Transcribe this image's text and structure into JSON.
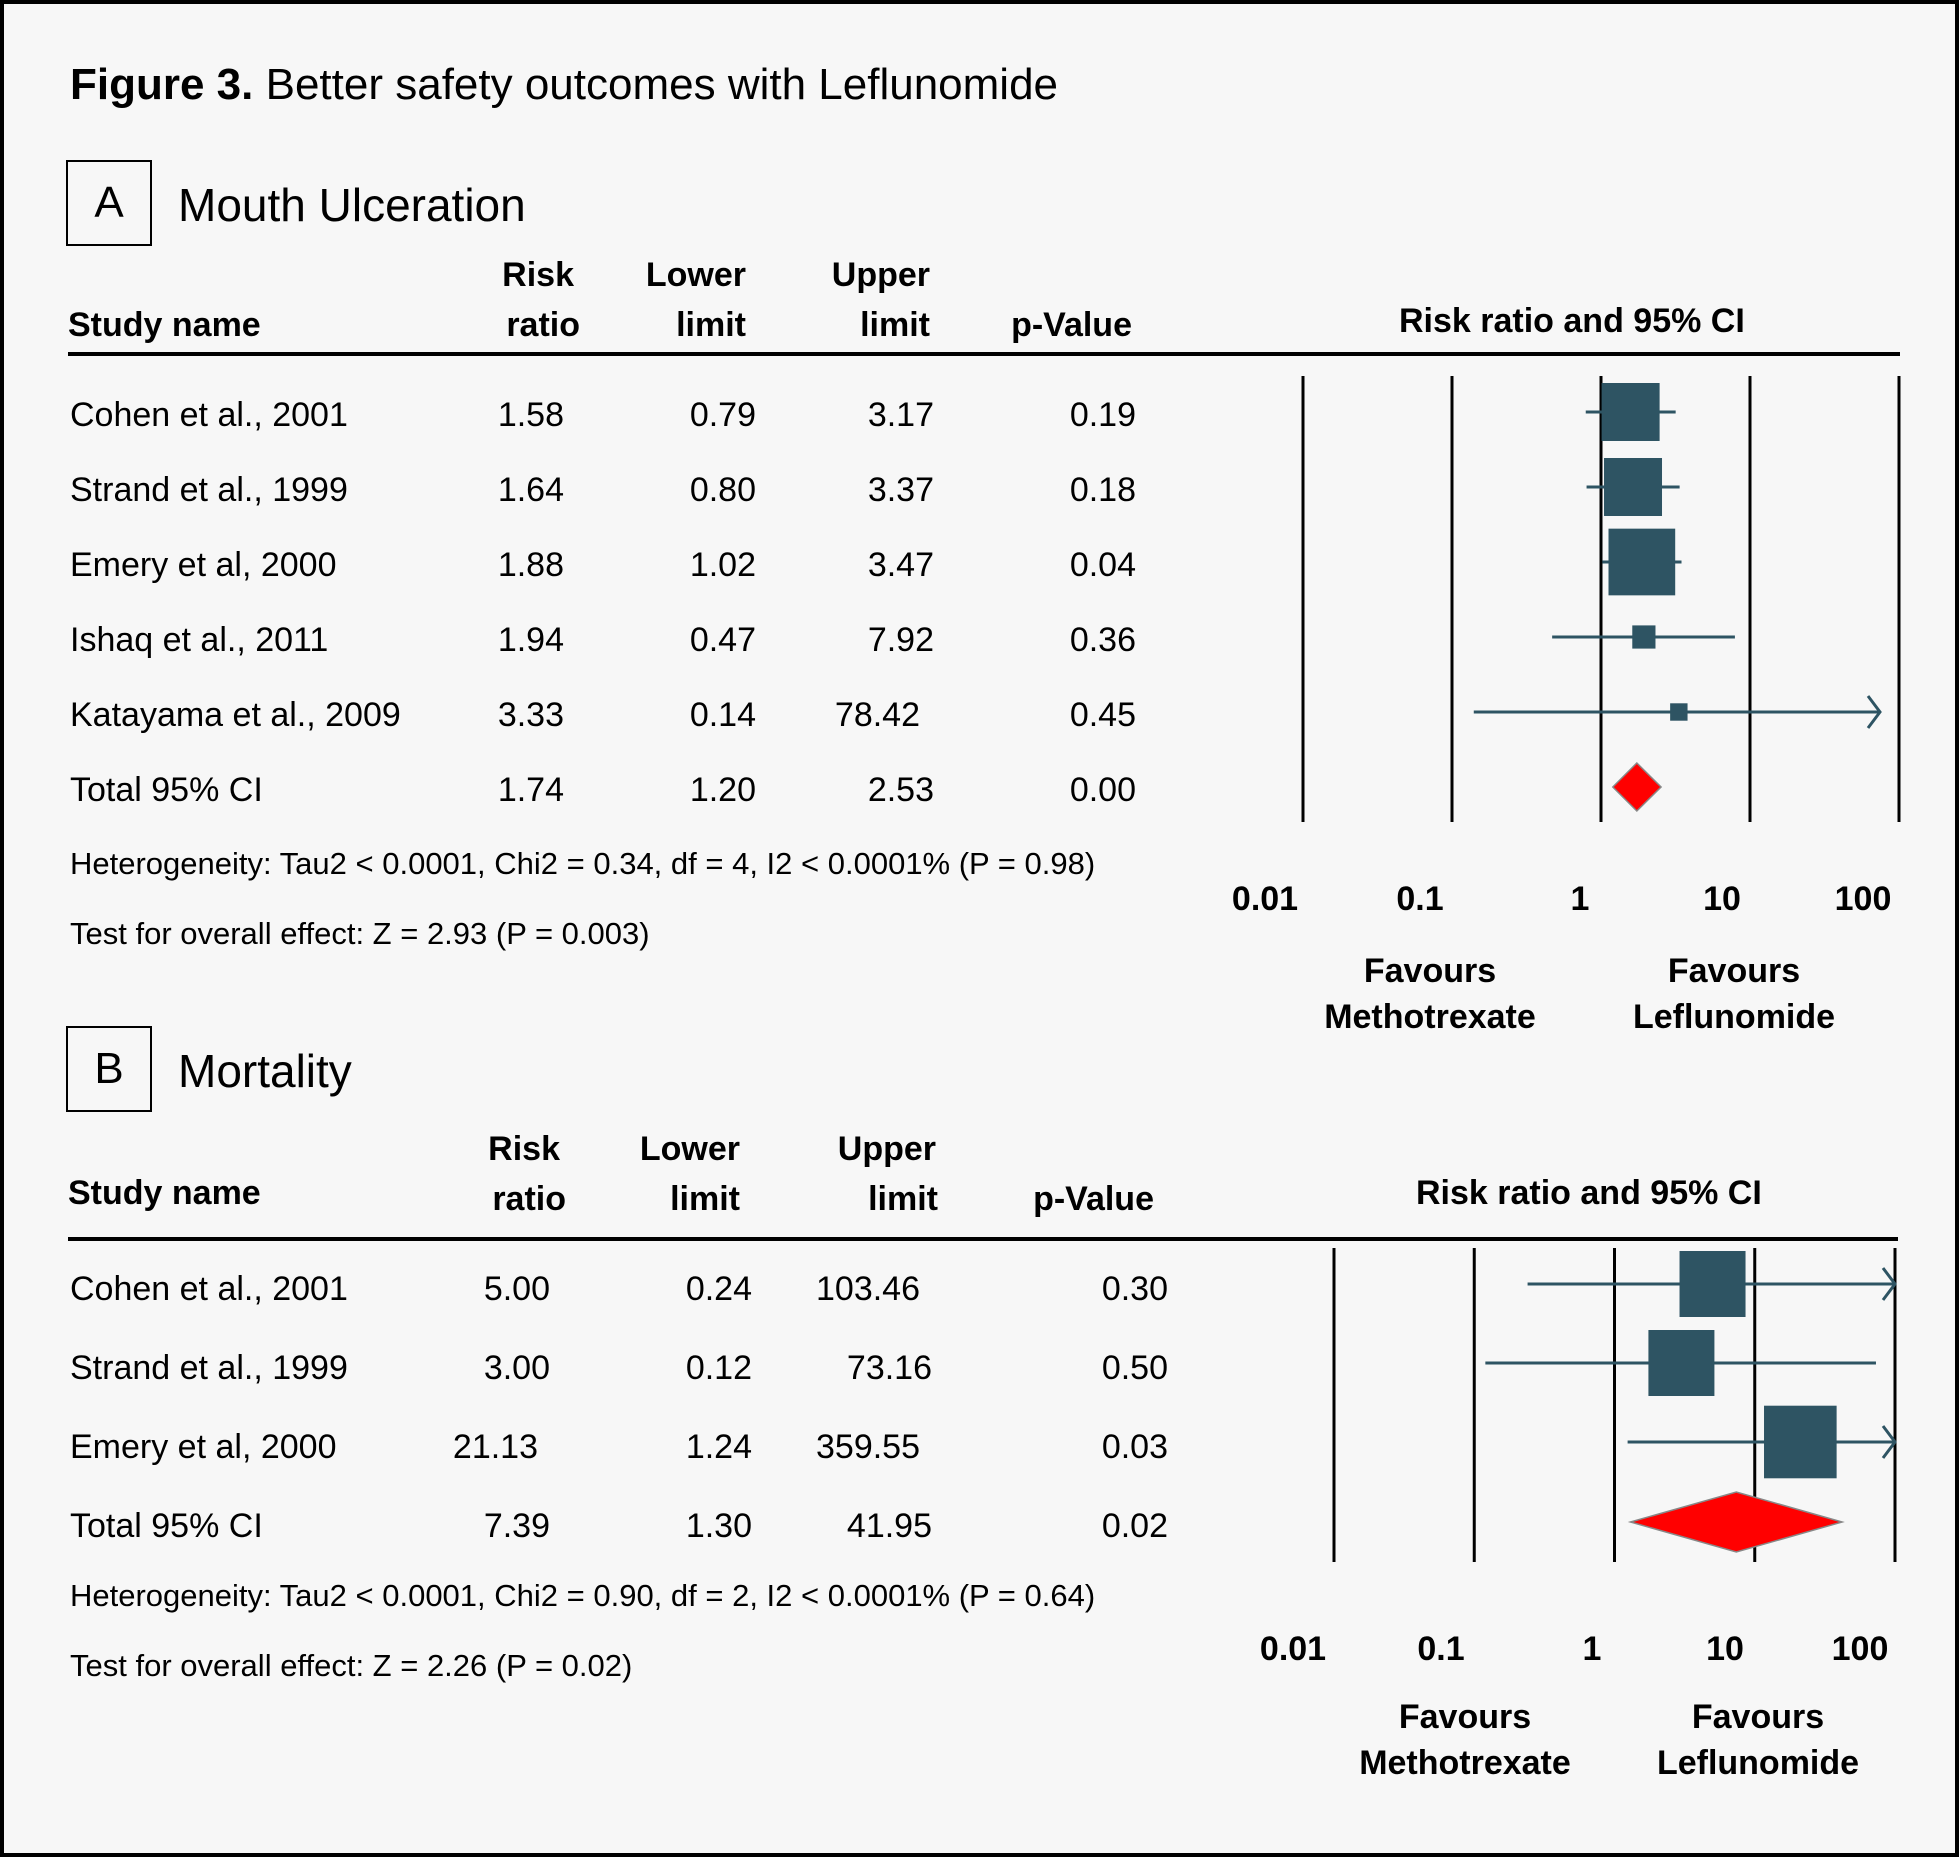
{
  "figure": {
    "label": "Figure 3.",
    "title": "Better safety outcomes with Leflunomide"
  },
  "colors": {
    "box": "#2e5463",
    "diamond": "#ff0000",
    "background": "#f7f7f7"
  },
  "headers": {
    "study_name": "Study name",
    "risk_line1": "Risk",
    "risk_line2": "ratio",
    "lower_line1": "Lower",
    "lower_line2": "limit",
    "upper_line1": "Upper",
    "upper_line2": "limit",
    "pvalue": "p-Value",
    "plot_title": "Risk ratio and 95% CI"
  },
  "panels": [
    {
      "letter": "A",
      "title": "Mouth Ulceration",
      "rows": [
        {
          "study": "Cohen et al., 2001",
          "rr": "1.58",
          "lower": "0.79",
          "upper": "3.17",
          "p": "0.19"
        },
        {
          "study": "Strand et al., 1999",
          "rr": "1.64",
          "lower": "0.80",
          "upper": "3.37",
          "p": "0.18"
        },
        {
          "study": "Emery et al, 2000",
          "rr": "1.88",
          "lower": "1.02",
          "upper": "3.47",
          "p": "0.04"
        },
        {
          "study": "Ishaq et al., 2011",
          "rr": "1.94",
          "lower": "0.47",
          "upper": "7.92",
          "p": "0.36"
        },
        {
          "study": "Katayama et al., 2009",
          "rr": "3.33",
          "lower": "0.14",
          "upper": "78.42",
          "p": "0.45"
        }
      ],
      "total": {
        "study": "Total 95% CI",
        "rr": "1.74",
        "lower": "1.20",
        "upper": "2.53",
        "p": "0.00"
      },
      "heterogeneity": "Heterogeneity: Tau2 < 0.0001, Chi2 = 0.34, df = 4, I2 < 0.0001% (P = 0.98)",
      "overall": "Test for overall effect: Z = 2.93 (P = 0.003)",
      "axis_ticks": [
        "0.01",
        "0.1",
        "1",
        "10",
        "100"
      ],
      "favours_left": [
        "Favours",
        "Methotrexate"
      ],
      "favours_right": [
        "Favours",
        "Leflunomide"
      ]
    },
    {
      "letter": "B",
      "title": "Mortality",
      "rows": [
        {
          "study": "Cohen et al., 2001",
          "rr": "5.00",
          "lower": "0.24",
          "upper": "103.46",
          "p": "0.30"
        },
        {
          "study": "Strand et al., 1999",
          "rr": "3.00",
          "lower": "0.12",
          "upper": "73.16",
          "p": "0.50"
        },
        {
          "study": "Emery et al, 2000",
          "rr": "21.13",
          "lower": "1.24",
          "upper": "359.55",
          "p": "0.03"
        }
      ],
      "total": {
        "study": "Total 95% CI",
        "rr": "7.39",
        "lower": "1.30",
        "upper": "41.95",
        "p": "0.02"
      },
      "heterogeneity": "Heterogeneity: Tau2 < 0.0001, Chi2 = 0.90, df = 2, I2 < 0.0001% (P = 0.64)",
      "overall": "Test for overall effect: Z = 2.26 (P = 0.02)",
      "axis_ticks": [
        "0.01",
        "0.1",
        "1",
        "10",
        "100"
      ],
      "favours_left": [
        "Favours",
        "Methotrexate"
      ],
      "favours_right": [
        "Favours",
        "Leflunomide"
      ]
    }
  ],
  "chart_data": [
    {
      "type": "forest",
      "title": "Mouth Ulceration",
      "measure": "Risk ratio",
      "scale": "log",
      "xlim": [
        0.01,
        100
      ],
      "ticks": [
        0.01,
        0.1,
        1,
        10,
        100
      ],
      "studies": [
        {
          "name": "Cohen et al., 2001",
          "rr": 1.58,
          "lower": 0.79,
          "upper": 3.17,
          "p": 0.19,
          "weight": 1.0
        },
        {
          "name": "Strand et al., 1999",
          "rr": 1.64,
          "lower": 0.8,
          "upper": 3.37,
          "p": 0.18,
          "weight": 1.0
        },
        {
          "name": "Emery et al, 2000",
          "rr": 1.88,
          "lower": 1.02,
          "upper": 3.47,
          "p": 0.04,
          "weight": 1.15
        },
        {
          "name": "Ishaq et al., 2011",
          "rr": 1.94,
          "lower": 0.47,
          "upper": 7.92,
          "p": 0.36,
          "weight": 0.4
        },
        {
          "name": "Katayama et al., 2009",
          "rr": 3.33,
          "lower": 0.14,
          "upper": 78.42,
          "p": 0.45,
          "weight": 0.3
        }
      ],
      "total": {
        "rr": 1.74,
        "lower": 1.2,
        "upper": 2.53,
        "p": 0.0
      }
    },
    {
      "type": "forest",
      "title": "Mortality",
      "measure": "Risk ratio",
      "scale": "log",
      "xlim": [
        0.01,
        100
      ],
      "ticks": [
        0.01,
        0.1,
        1,
        10,
        100
      ],
      "studies": [
        {
          "name": "Cohen et al., 2001",
          "rr": 5.0,
          "lower": 0.24,
          "upper": 103.46,
          "p": 0.3,
          "weight": 1.0
        },
        {
          "name": "Strand et al., 1999",
          "rr": 3.0,
          "lower": 0.12,
          "upper": 73.16,
          "p": 0.5,
          "weight": 1.0
        },
        {
          "name": "Emery et al, 2000",
          "rr": 21.13,
          "lower": 1.24,
          "upper": 359.55,
          "p": 0.03,
          "weight": 1.1
        }
      ],
      "total": {
        "rr": 7.39,
        "lower": 1.3,
        "upper": 41.95,
        "p": 0.02
      }
    }
  ]
}
